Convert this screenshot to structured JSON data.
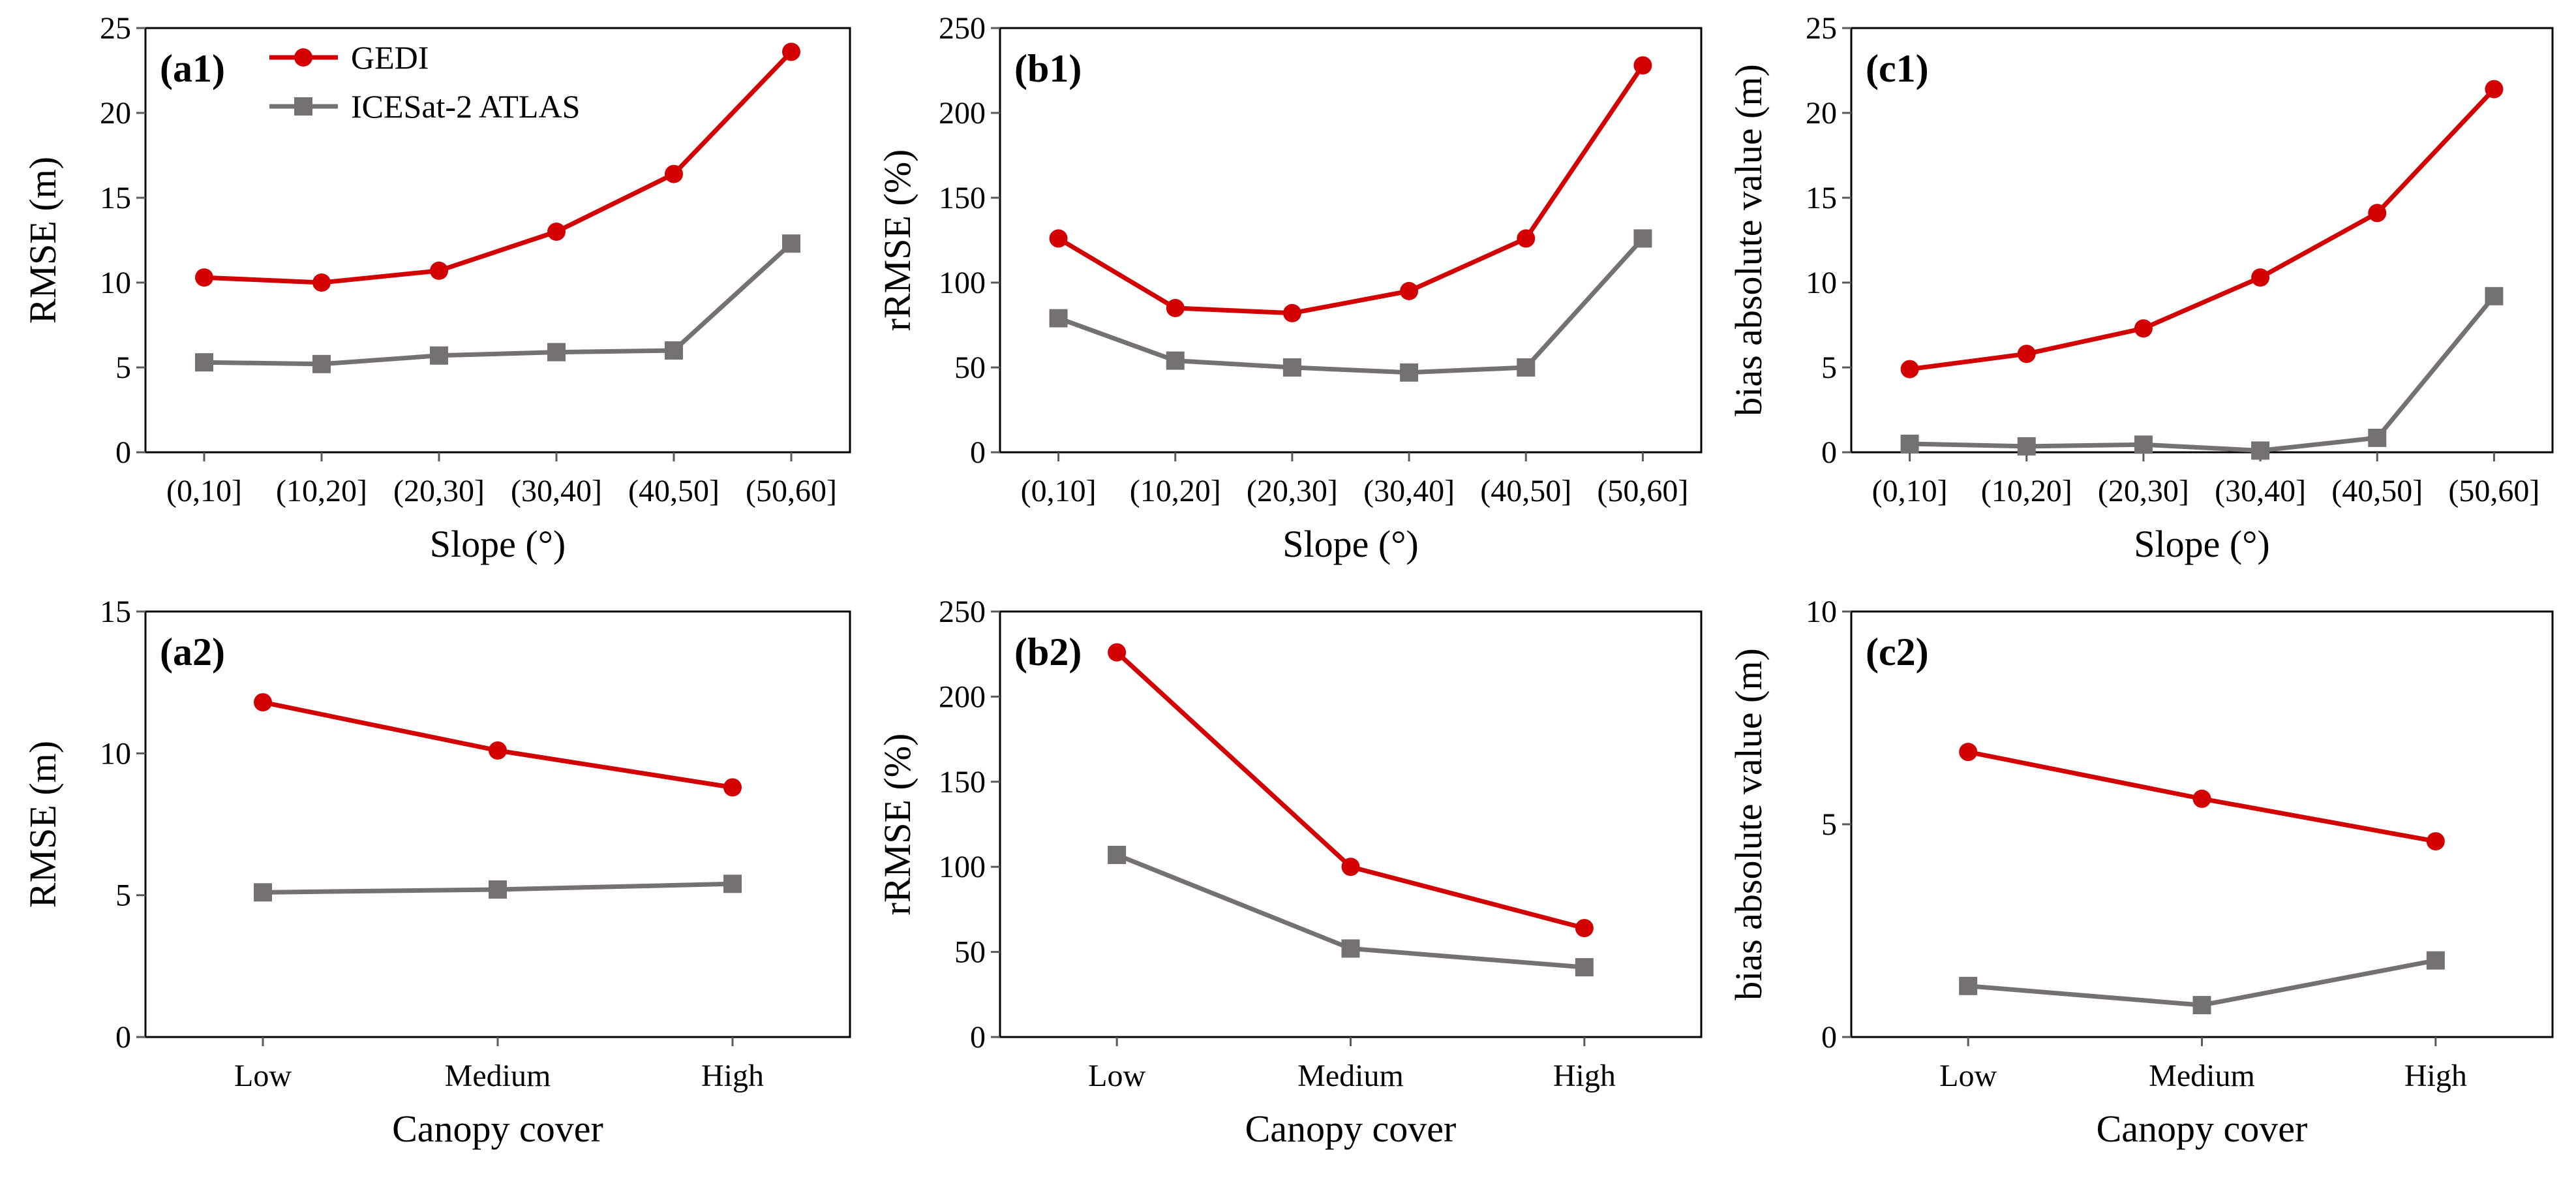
{
  "colors": {
    "gedi": "#D20000",
    "icesat": "#767171",
    "axis": "#000000",
    "tick": "#595959"
  },
  "legend": {
    "gedi": "GEDI",
    "icesat": "ICESat-2 ATLAS"
  },
  "chart_data": [
    {
      "id": "a1",
      "type": "line",
      "panel_label": "(a1)",
      "xlabel": "Slope (°)",
      "ylabel": "RMSE (m)",
      "categories": [
        "(0,10]",
        "(10,20]",
        "(20,30]",
        "(30,40]",
        "(40,50]",
        "(50,60]"
      ],
      "ylim": [
        0,
        25
      ],
      "yticks": [
        0,
        5,
        10,
        15,
        20,
        25
      ],
      "show_legend": true,
      "series": [
        {
          "name": "GEDI",
          "key": "gedi",
          "marker": "circle",
          "values": [
            10.3,
            10.0,
            10.7,
            13.0,
            16.4,
            23.6
          ]
        },
        {
          "name": "ICESat-2 ATLAS",
          "key": "icesat",
          "marker": "square",
          "values": [
            5.3,
            5.2,
            5.7,
            5.9,
            6.0,
            12.3
          ]
        }
      ]
    },
    {
      "id": "b1",
      "type": "line",
      "panel_label": "(b1)",
      "xlabel": "Slope (°)",
      "ylabel": "rRMSE (%)",
      "categories": [
        "(0,10]",
        "(10,20]",
        "(20,30]",
        "(30,40]",
        "(40,50]",
        "(50,60]"
      ],
      "ylim": [
        0,
        250
      ],
      "yticks": [
        0,
        50,
        100,
        150,
        200,
        250
      ],
      "show_legend": false,
      "series": [
        {
          "name": "GEDI",
          "key": "gedi",
          "marker": "circle",
          "values": [
            126,
            85,
            82,
            95,
            126,
            228
          ]
        },
        {
          "name": "ICESat-2 ATLAS",
          "key": "icesat",
          "marker": "square",
          "values": [
            79,
            54,
            50,
            47,
            50,
            126
          ]
        }
      ]
    },
    {
      "id": "c1",
      "type": "line",
      "panel_label": "(c1)",
      "xlabel": "Slope (°)",
      "ylabel": "bias absolute value (m)",
      "categories": [
        "(0,10]",
        "(10,20]",
        "(20,30]",
        "(30,40]",
        "(40,50]",
        "(50,60]"
      ],
      "ylim": [
        0,
        25
      ],
      "yticks": [
        0,
        5,
        10,
        15,
        20,
        25
      ],
      "show_legend": false,
      "series": [
        {
          "name": "GEDI",
          "key": "gedi",
          "marker": "circle",
          "values": [
            4.9,
            5.8,
            7.3,
            10.3,
            14.1,
            21.4
          ]
        },
        {
          "name": "ICESat-2 ATLAS",
          "key": "icesat",
          "marker": "square",
          "values": [
            0.5,
            0.35,
            0.45,
            0.1,
            0.85,
            9.2
          ]
        }
      ]
    },
    {
      "id": "a2",
      "type": "line",
      "panel_label": "(a2)",
      "xlabel": "Canopy cover",
      "ylabel": "RMSE (m)",
      "categories": [
        "Low",
        "Medium",
        "High"
      ],
      "ylim": [
        0,
        15
      ],
      "yticks": [
        0,
        5,
        10,
        15
      ],
      "show_legend": false,
      "series": [
        {
          "name": "GEDI",
          "key": "gedi",
          "marker": "circle",
          "values": [
            11.8,
            10.1,
            8.8
          ]
        },
        {
          "name": "ICESat-2 ATLAS",
          "key": "icesat",
          "marker": "square",
          "values": [
            5.1,
            5.2,
            5.4
          ]
        }
      ]
    },
    {
      "id": "b2",
      "type": "line",
      "panel_label": "(b2)",
      "xlabel": "Canopy cover",
      "ylabel": "rRMSE (%)",
      "categories": [
        "Low",
        "Medium",
        "High"
      ],
      "ylim": [
        0,
        250
      ],
      "yticks": [
        0,
        50,
        100,
        150,
        200,
        250
      ],
      "show_legend": false,
      "series": [
        {
          "name": "GEDI",
          "key": "gedi",
          "marker": "circle",
          "values": [
            226,
            100,
            64
          ]
        },
        {
          "name": "ICESat-2 ATLAS",
          "key": "icesat",
          "marker": "square",
          "values": [
            107,
            52,
            41
          ]
        }
      ]
    },
    {
      "id": "c2",
      "type": "line",
      "panel_label": "(c2)",
      "xlabel": "Canopy cover",
      "ylabel": "bias absolute value (m)",
      "categories": [
        "Low",
        "Medium",
        "High"
      ],
      "ylim": [
        0,
        10
      ],
      "yticks": [
        0,
        5,
        10
      ],
      "show_legend": false,
      "series": [
        {
          "name": "GEDI",
          "key": "gedi",
          "marker": "circle",
          "values": [
            6.7,
            5.6,
            4.6
          ]
        },
        {
          "name": "ICESat-2 ATLAS",
          "key": "icesat",
          "marker": "square",
          "values": [
            1.2,
            0.75,
            1.8
          ]
        }
      ]
    }
  ]
}
